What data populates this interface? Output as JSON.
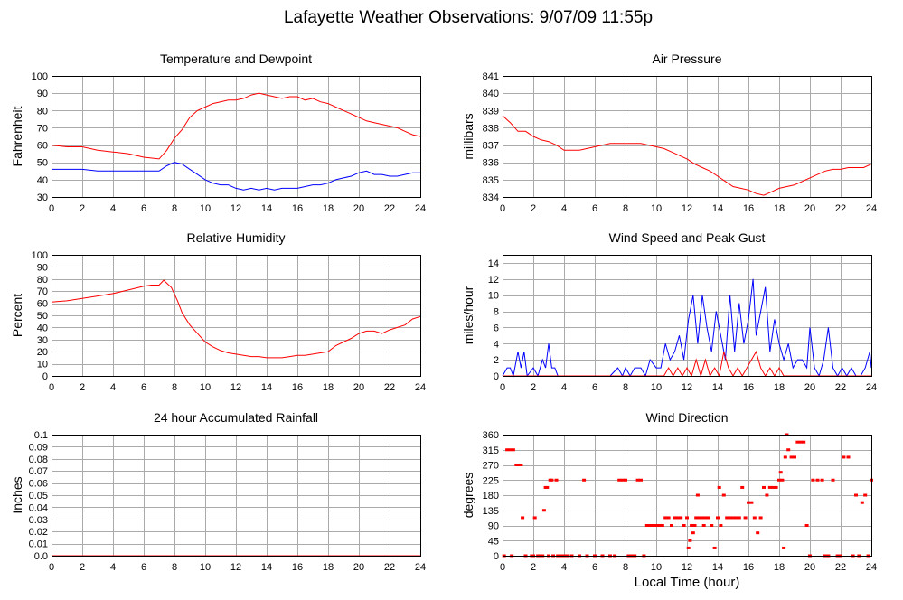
{
  "page": {
    "title": "Lafayette Weather Observations: 9/07/09 11:55p",
    "bottom_xlabel": "Local Time (hour)"
  },
  "chart_data": [
    {
      "id": "temp",
      "type": "line",
      "title": "Temperature and Dewpoint",
      "ylabel": "Fahrenheit",
      "xlabel": "",
      "xlim": [
        0,
        24
      ],
      "ylim": [
        30,
        100
      ],
      "xticks": [
        0,
        2,
        4,
        6,
        8,
        10,
        12,
        14,
        16,
        18,
        20,
        22,
        24
      ],
      "yticks": [
        30,
        40,
        50,
        60,
        70,
        80,
        90,
        100
      ],
      "grid": true,
      "series": [
        {
          "color": "#ff0000",
          "x": [
            0,
            1,
            2,
            3,
            4,
            5,
            6,
            7,
            7.5,
            8,
            8.5,
            9,
            9.5,
            10,
            10.5,
            11,
            11.5,
            12,
            12.5,
            13,
            13.5,
            14,
            14.5,
            15,
            15.5,
            16,
            16.5,
            17,
            17.5,
            18,
            18.5,
            19,
            19.5,
            20,
            20.5,
            21,
            21.5,
            22,
            22.5,
            23,
            23.5,
            24
          ],
          "y": [
            60,
            59,
            59,
            57,
            56,
            55,
            53,
            52,
            57,
            64,
            69,
            76,
            80,
            82,
            84,
            85,
            86,
            86,
            87,
            89,
            90,
            89,
            88,
            87,
            88,
            88,
            86,
            87,
            85,
            84,
            82,
            80,
            78,
            76,
            74,
            73,
            72,
            71,
            70,
            68,
            66,
            65
          ]
        },
        {
          "color": "#0000ff",
          "x": [
            0,
            1,
            2,
            3,
            4,
            5,
            6,
            7,
            7.5,
            8,
            8.5,
            9,
            9.5,
            10,
            10.5,
            11,
            11.5,
            12,
            12.5,
            13,
            13.5,
            14,
            14.5,
            15,
            15.5,
            16,
            16.5,
            17,
            17.5,
            18,
            18.5,
            19,
            19.5,
            20,
            20.5,
            21,
            21.5,
            22,
            22.5,
            23,
            23.5,
            24
          ],
          "y": [
            46,
            46,
            46,
            45,
            45,
            45,
            45,
            45,
            48,
            50,
            49,
            46,
            43,
            40,
            38,
            37,
            37,
            35,
            34,
            35,
            34,
            35,
            34,
            35,
            35,
            35,
            36,
            37,
            37,
            38,
            40,
            41,
            42,
            44,
            45,
            43,
            43,
            42,
            42,
            43,
            44,
            44
          ]
        }
      ]
    },
    {
      "id": "pressure",
      "type": "line",
      "title": "Air Pressure",
      "ylabel": "millibars",
      "xlabel": "",
      "xlim": [
        0,
        24
      ],
      "ylim": [
        834,
        841
      ],
      "xticks": [
        0,
        2,
        4,
        6,
        8,
        10,
        12,
        14,
        16,
        18,
        20,
        22,
        24
      ],
      "yticks": [
        834,
        835,
        836,
        837,
        838,
        839,
        840,
        841
      ],
      "grid": true,
      "series": [
        {
          "color": "#ff0000",
          "x": [
            0,
            0.5,
            1,
            1.5,
            2,
            2.5,
            3,
            3.5,
            4,
            5,
            5.5,
            6,
            6.5,
            7,
            8,
            9,
            9.5,
            10,
            10.5,
            11,
            11.5,
            12,
            12.5,
            13,
            13.5,
            14,
            14.5,
            15,
            15.5,
            16,
            16.5,
            17,
            17.5,
            18,
            18.5,
            19,
            19.5,
            20,
            20.5,
            21,
            21.5,
            22,
            22.5,
            23,
            23.5,
            24
          ],
          "y": [
            838.7,
            838.3,
            837.8,
            837.8,
            837.5,
            837.3,
            837.2,
            837.0,
            836.7,
            836.7,
            836.8,
            836.9,
            837.0,
            837.1,
            837.1,
            837.1,
            837.0,
            836.9,
            836.8,
            836.6,
            836.4,
            836.2,
            835.9,
            835.7,
            835.5,
            835.2,
            834.9,
            834.6,
            834.5,
            834.4,
            834.2,
            834.1,
            834.3,
            834.5,
            834.6,
            834.7,
            834.9,
            835.1,
            835.3,
            835.5,
            835.6,
            835.6,
            835.7,
            835.7,
            835.7,
            835.9
          ]
        }
      ]
    },
    {
      "id": "humidity",
      "type": "line",
      "title": "Relative Humidity",
      "ylabel": "Percent",
      "xlabel": "",
      "xlim": [
        0,
        24
      ],
      "ylim": [
        0,
        100
      ],
      "xticks": [
        0,
        2,
        4,
        6,
        8,
        10,
        12,
        14,
        16,
        18,
        20,
        22,
        24
      ],
      "yticks": [
        0,
        10,
        20,
        30,
        40,
        50,
        60,
        70,
        80,
        90,
        100
      ],
      "grid": true,
      "series": [
        {
          "color": "#ff0000",
          "x": [
            0,
            1,
            2,
            3,
            4,
            5,
            6,
            6.5,
            7,
            7.3,
            7.8,
            8.2,
            8.5,
            9,
            9.5,
            10,
            10.5,
            11,
            11.5,
            12,
            12.5,
            13,
            13.5,
            14,
            14.5,
            15,
            15.5,
            16,
            16.5,
            17,
            17.5,
            18,
            18.5,
            19,
            19.5,
            20,
            20.5,
            21,
            21.5,
            22,
            22.5,
            23,
            23.5,
            24
          ],
          "y": [
            61,
            62,
            64,
            66,
            68,
            71,
            74,
            75,
            75,
            79,
            73,
            62,
            52,
            42,
            35,
            28,
            24,
            21,
            19,
            18,
            17,
            16,
            16,
            15,
            15,
            15,
            16,
            17,
            17,
            18,
            19,
            20,
            25,
            28,
            31,
            35,
            37,
            37,
            35,
            38,
            40,
            42,
            47,
            49
          ]
        }
      ]
    },
    {
      "id": "wind",
      "type": "line",
      "title": "Wind Speed and Peak Gust",
      "ylabel": "miles/hour",
      "xlabel": "",
      "xlim": [
        0,
        24
      ],
      "ylim": [
        0,
        15
      ],
      "xticks": [
        0,
        2,
        4,
        6,
        8,
        10,
        12,
        14,
        16,
        18,
        20,
        22,
        24
      ],
      "yticks": [
        0,
        2,
        4,
        6,
        8,
        10,
        12,
        14
      ],
      "grid": true,
      "series": [
        {
          "color": "#0000ff",
          "x": [
            0,
            0.3,
            0.5,
            0.7,
            1.0,
            1.2,
            1.4,
            1.6,
            2.0,
            2.3,
            2.6,
            2.8,
            3.0,
            3.2,
            3.4,
            3.6,
            4.0,
            5.0,
            6.0,
            7.0,
            7.5,
            7.8,
            8.0,
            8.3,
            8.6,
            9.0,
            9.3,
            9.6,
            10.0,
            10.3,
            10.6,
            10.9,
            11.2,
            11.5,
            11.8,
            12.1,
            12.4,
            12.7,
            13.0,
            13.3,
            13.6,
            13.9,
            14.2,
            14.5,
            14.8,
            15.1,
            15.4,
            15.7,
            16.0,
            16.3,
            16.5,
            16.8,
            17.1,
            17.4,
            17.7,
            18.0,
            18.3,
            18.6,
            18.9,
            19.2,
            19.5,
            19.8,
            20.0,
            20.3,
            20.6,
            20.9,
            21.2,
            21.5,
            21.8,
            22.1,
            22.4,
            22.7,
            23.0,
            23.3,
            23.6,
            23.9,
            24.0
          ],
          "y": [
            0,
            1,
            1,
            0,
            3,
            1,
            3,
            0,
            1,
            0,
            2,
            1,
            4,
            1,
            1,
            0,
            0,
            0,
            0,
            0,
            1,
            0,
            1,
            0,
            1,
            1,
            0,
            2,
            1,
            1,
            4,
            2,
            3,
            5,
            2,
            7,
            10,
            4,
            10,
            6,
            3,
            8,
            5,
            2,
            10,
            3,
            9,
            4,
            7,
            12,
            5,
            8,
            11,
            3,
            7,
            4,
            2,
            4,
            1,
            2,
            2,
            1,
            6,
            1,
            0,
            2,
            6,
            1,
            0,
            1,
            0,
            1,
            0,
            0,
            1,
            3,
            1
          ]
        },
        {
          "color": "#ff0000",
          "x": [
            0,
            10.5,
            10.8,
            11.1,
            11.4,
            11.7,
            12.0,
            12.3,
            12.6,
            12.9,
            13.2,
            13.5,
            13.8,
            14.1,
            14.4,
            14.7,
            15.0,
            15.3,
            15.6,
            15.9,
            16.2,
            16.5,
            16.8,
            17.1,
            17.4,
            17.7,
            18.0,
            18.3,
            24.0
          ],
          "y": [
            0,
            0,
            1,
            0,
            1,
            0,
            1,
            0,
            2,
            0,
            2,
            0,
            1,
            0,
            3,
            1,
            0,
            1,
            0,
            1,
            2,
            3,
            1,
            0,
            1,
            0,
            1,
            0,
            0
          ]
        }
      ]
    },
    {
      "id": "rain",
      "type": "line",
      "title": "24 hour Accumulated Rainfall",
      "ylabel": "Inches",
      "xlabel": "",
      "xlim": [
        0,
        24
      ],
      "ylim": [
        0,
        0.1
      ],
      "xticks": [
        0,
        2,
        4,
        6,
        8,
        10,
        12,
        14,
        16,
        18,
        20,
        22,
        24
      ],
      "yticks": [
        0.0,
        0.01,
        0.02,
        0.03,
        0.04,
        0.05,
        0.06,
        0.07,
        0.08,
        0.09,
        0.1
      ],
      "ytick_labels": [
        "0.0",
        "0.01",
        "0.02",
        "0.03",
        "0.04",
        "0.05",
        "0.06",
        "0.07",
        "0.08",
        "0.09",
        "0.1"
      ],
      "grid": true,
      "series": [
        {
          "color": "#ff0000",
          "x": [
            0,
            24
          ],
          "y": [
            0,
            0
          ]
        }
      ]
    },
    {
      "id": "direction",
      "type": "scatter",
      "title": "Wind Direction",
      "ylabel": "degrees",
      "xlabel": "Local Time (hour)",
      "xlim": [
        0,
        24
      ],
      "ylim": [
        0,
        360
      ],
      "xticks": [
        0,
        2,
        4,
        6,
        8,
        10,
        12,
        14,
        16,
        18,
        20,
        22,
        24
      ],
      "yticks": [
        0,
        45,
        90,
        135,
        180,
        225,
        270,
        315,
        360
      ],
      "grid": true,
      "series": [
        {
          "color": "#ff0000",
          "x": [
            0.1,
            0.3,
            0.5,
            0.6,
            0.7,
            0.9,
            1.1,
            1.2,
            1.3,
            1.5,
            1.9,
            2.0,
            2.1,
            2.3,
            2.5,
            2.6,
            2.7,
            2.8,
            2.9,
            3.0,
            3.1,
            3.2,
            3.3,
            3.5,
            3.6,
            3.8,
            4.0,
            4.2,
            4.5,
            5.0,
            5.3,
            5.5,
            6.0,
            6.5,
            7.0,
            7.3,
            7.6,
            7.8,
            8.0,
            8.2,
            8.4,
            8.6,
            8.8,
            9.0,
            9.2,
            9.4,
            9.6,
            9.8,
            10.0,
            10.2,
            10.4,
            10.6,
            10.8,
            11.0,
            11.2,
            11.4,
            11.6,
            11.8,
            12.0,
            12.1,
            12.2,
            12.3,
            12.4,
            12.5,
            12.6,
            12.7,
            12.8,
            13.0,
            13.1,
            13.2,
            13.4,
            13.6,
            13.8,
            14.0,
            14.1,
            14.2,
            14.4,
            14.6,
            14.8,
            15.0,
            15.2,
            15.4,
            15.6,
            15.8,
            16.0,
            16.2,
            16.4,
            16.6,
            16.8,
            17.0,
            17.2,
            17.4,
            17.6,
            17.8,
            18.0,
            18.1,
            18.2,
            18.3,
            18.4,
            18.5,
            18.6,
            18.8,
            19.0,
            19.2,
            19.4,
            19.6,
            19.8,
            20.0,
            20.2,
            20.5,
            20.8,
            21.0,
            21.2,
            21.5,
            21.8,
            22.0,
            22.2,
            22.5,
            22.8,
            23.0,
            23.2,
            23.4,
            23.6,
            23.8,
            24.0
          ],
          "y": [
            0,
            315,
            315,
            0,
            315,
            270,
            270,
            270,
            113,
            0,
            0,
            0,
            113,
            0,
            0,
            0,
            135,
            203,
            203,
            0,
            225,
            225,
            0,
            225,
            0,
            0,
            0,
            0,
            0,
            0,
            225,
            0,
            0,
            0,
            0,
            0,
            225,
            225,
            225,
            0,
            0,
            0,
            225,
            225,
            0,
            90,
            90,
            90,
            90,
            90,
            90,
            113,
            113,
            90,
            113,
            113,
            113,
            90,
            113,
            23,
            45,
            90,
            68,
            90,
            113,
            180,
            113,
            113,
            90,
            113,
            113,
            90,
            23,
            113,
            203,
            90,
            180,
            113,
            113,
            113,
            113,
            113,
            203,
            113,
            158,
            158,
            113,
            68,
            113,
            203,
            180,
            203,
            203,
            203,
            225,
            248,
            225,
            23,
            293,
            360,
            315,
            293,
            293,
            338,
            338,
            338,
            90,
            0,
            225,
            225,
            225,
            0,
            0,
            225,
            0,
            0,
            293,
            293,
            0,
            180,
            0,
            158,
            180,
            0,
            225
          ]
        }
      ]
    }
  ]
}
